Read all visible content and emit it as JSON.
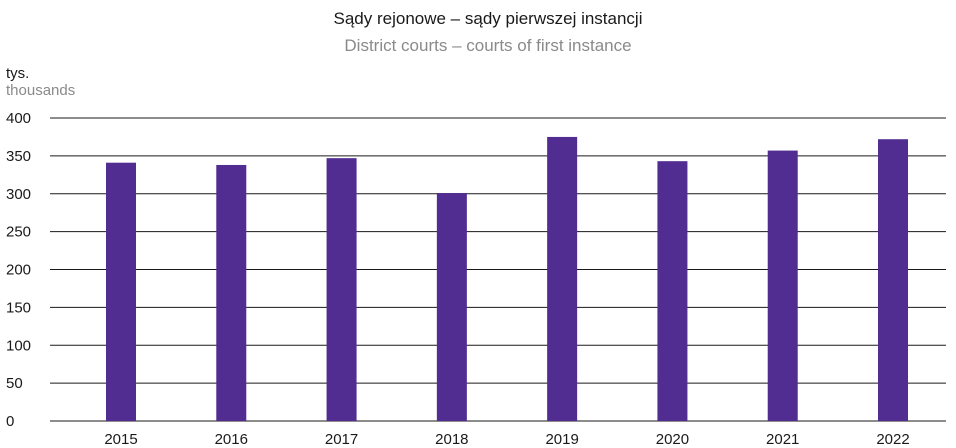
{
  "chart_data": {
    "type": "bar",
    "title": "Sądy rejonowe – sądy pierwszej instancji",
    "subtitle": "District courts – courts of first instance",
    "ylabel": "tys.",
    "ylabel_en": "thousands",
    "xlabel": "",
    "ylim": [
      0,
      400
    ],
    "yticks": [
      0,
      50,
      100,
      150,
      200,
      250,
      300,
      350,
      400
    ],
    "grid": true,
    "categories": [
      "2015",
      "2016",
      "2017",
      "2018",
      "2019",
      "2020",
      "2021",
      "2022"
    ],
    "values": [
      341,
      338,
      347,
      301,
      375,
      343,
      357,
      372
    ],
    "bar_color": "#522d91"
  }
}
